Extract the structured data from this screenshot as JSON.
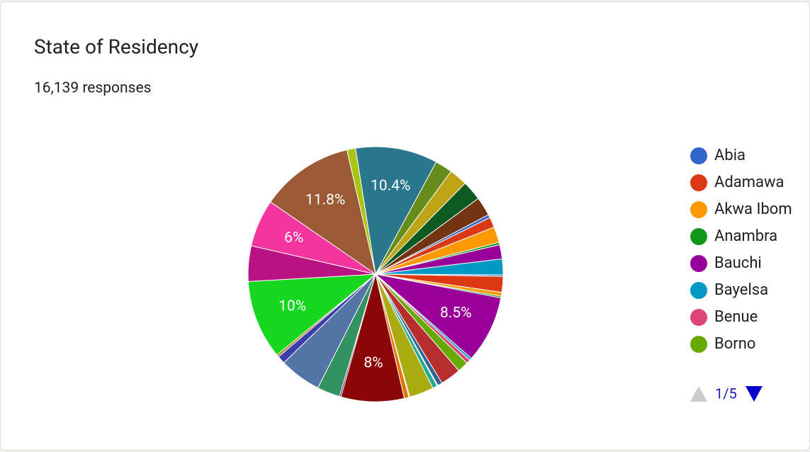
{
  "chart_data": {
    "type": "pie",
    "title": "State of Residency",
    "subtitle": "16,139 responses",
    "categories": [
      "Abia",
      "Adamawa",
      "Akwa Ibom",
      "Anambra",
      "Bauchi",
      "Bayelsa",
      "Benue",
      "Borno",
      null,
      null,
      null,
      null,
      null,
      null,
      null,
      null,
      null,
      null,
      null,
      null,
      null,
      null,
      null,
      null,
      null,
      null,
      null,
      null,
      null,
      null,
      null,
      null,
      null,
      null,
      null,
      null,
      null
    ],
    "values": [
      0.2,
      2,
      0.5,
      0.2,
      8.5,
      0.3,
      0.5,
      1.4,
      2.6,
      0.6,
      0.1,
      0.6,
      3.1,
      0.1,
      0.6,
      8,
      0.2,
      2.9,
      5.3,
      1,
      0.3,
      10,
      4.5,
      6,
      11.8,
      1.1,
      10.4,
      2.2,
      2.3,
      2.5,
      2.4,
      0.4,
      1.3,
      2,
      0.3,
      1.8,
      2
    ],
    "value_labels": [
      null,
      null,
      null,
      null,
      "8.5%",
      null,
      null,
      null,
      null,
      null,
      null,
      null,
      null,
      null,
      null,
      "8%",
      null,
      null,
      null,
      null,
      null,
      "10%",
      null,
      "6%",
      "11.8%",
      null,
      "10.4%",
      null,
      null,
      null,
      null,
      null,
      null,
      null,
      null,
      null,
      null
    ],
    "colors": [
      "#3366cc",
      "#dc3912",
      "#ff9900",
      "#109618",
      "#990099",
      "#0099c6",
      "#dd4477",
      "#66aa00",
      "#b82e2e",
      "#316395",
      "#994499",
      "#22aa99",
      "#aaaa11",
      "#6633cc",
      "#e67300",
      "#8b0707",
      "#651067",
      "#329262",
      "#5574a6",
      "#3b3eac",
      "#b77322",
      "#16d620",
      "#b91383",
      "#f4359e",
      "#9c5935",
      "#a9c413",
      "#2a778d",
      "#668d1c",
      "#bea413",
      "#0c5922",
      "#743411",
      "#3366cc",
      "#dc3912",
      "#ff9900",
      "#109618",
      "#990099",
      "#0099c6"
    ],
    "legend_position": "right",
    "legend_page": "1/5"
  }
}
